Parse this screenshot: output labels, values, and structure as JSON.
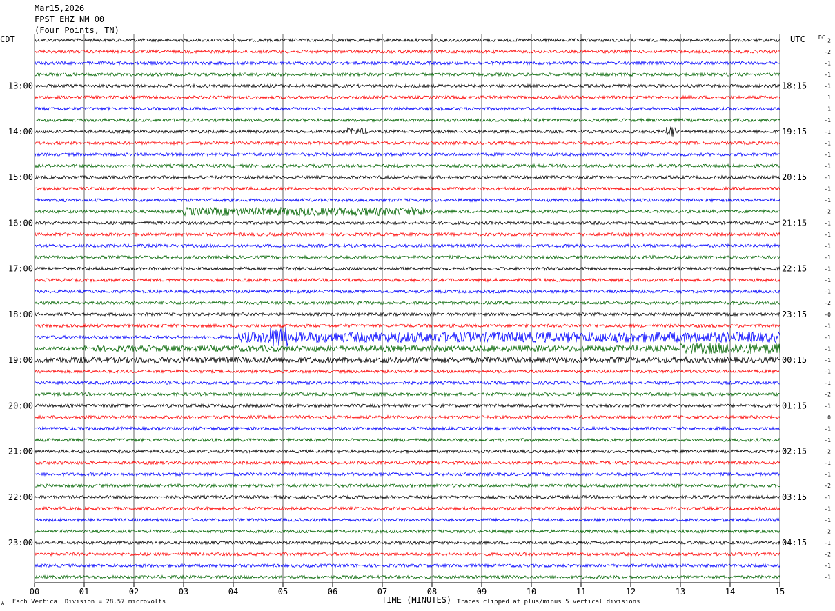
{
  "header": {
    "date": "Mar15,2026",
    "station": "FPST EHZ NM 00",
    "location": "(Four Points, TN)"
  },
  "left_tz": "CDT",
  "right_tz": "UTC",
  "dc_label": "DC",
  "xaxis_title": "TIME (MINUTES)",
  "footer": {
    "scale": "Each Vertical Division =   28.57 microvolts",
    "clip": "Traces clipped at plus/minus 5 vertical divisions",
    "mark": "A"
  },
  "chart_data": {
    "type": "line",
    "title": "FPST EHZ NM 00",
    "xlabel": "TIME (MINUTES)",
    "xlim": [
      0,
      15
    ],
    "x_ticks": [
      "00",
      "01",
      "02",
      "03",
      "04",
      "05",
      "06",
      "07",
      "08",
      "09",
      "10",
      "11",
      "12",
      "13",
      "14",
      "15"
    ],
    "left_hour_labels": [
      "13:00",
      "14:00",
      "15:00",
      "16:00",
      "17:00",
      "18:00",
      "19:00",
      "20:00",
      "21:00",
      "22:00",
      "23:00"
    ],
    "right_hour_labels": [
      "18:15",
      "19:15",
      "20:15",
      "21:15",
      "22:15",
      "23:15",
      "00:15",
      "01:15",
      "02:15",
      "03:15",
      "04:15"
    ],
    "trace_colors": [
      "#000000",
      "#ff0000",
      "#0000ff",
      "#006400"
    ],
    "trace_count": 48,
    "dc_offsets": [
      "-2",
      "-2",
      "-1",
      "-1",
      "-1",
      "1",
      "1",
      "-1",
      "-1",
      "-1",
      "-1",
      "-1",
      "-1",
      "-1",
      "-1",
      "-2",
      "-1",
      "-1",
      "-1",
      "-1",
      "-1",
      "-1",
      "-1",
      "-2",
      "-0",
      "-1",
      "-1",
      "-1",
      "-1",
      "-1",
      "-1",
      "-2",
      "-1",
      "0",
      "-1",
      "-1",
      "-2",
      "-1",
      "-1",
      "-2",
      "-1",
      "-1",
      "-1",
      "-2",
      "-1",
      "-2",
      "-1",
      "-1"
    ],
    "events": [
      {
        "trace": 26,
        "start_min": 4.1,
        "end_min": 15.0,
        "amplitude": 1.4
      },
      {
        "trace": 26,
        "start_min": 4.7,
        "end_min": 5.1,
        "amplitude": 2.8
      },
      {
        "trace": 27,
        "start_min": 1.0,
        "end_min": 15.0,
        "amplitude": 0.8
      },
      {
        "trace": 27,
        "start_min": 13.0,
        "end_min": 15.0,
        "amplitude": 1.4
      },
      {
        "trace": 28,
        "start_min": 0.0,
        "end_min": 15.0,
        "amplitude": 0.8
      },
      {
        "trace": 15,
        "start_min": 3.0,
        "end_min": 8.0,
        "amplitude": 1.1
      },
      {
        "trace": 8,
        "start_min": 6.3,
        "end_min": 6.7,
        "amplitude": 1.0
      },
      {
        "trace": 8,
        "start_min": 12.7,
        "end_min": 12.9,
        "amplitude": 1.6
      }
    ]
  }
}
